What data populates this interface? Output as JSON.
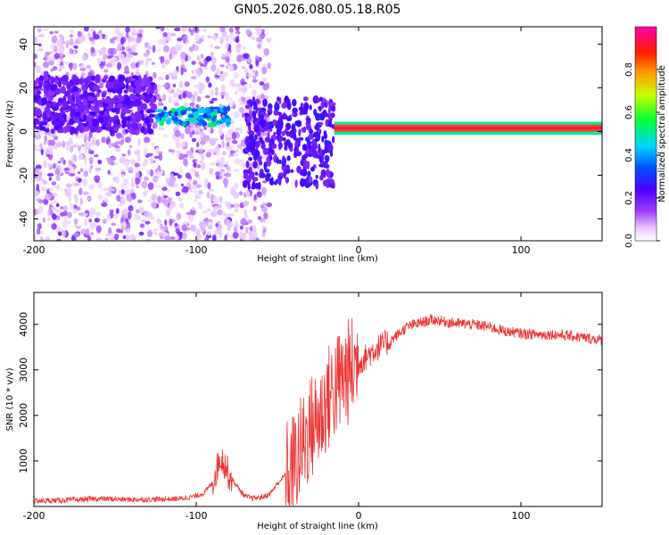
{
  "figure_title": "GN05.2026.080.05.18.R05",
  "chart_data": [
    {
      "type": "heatmap",
      "title": "GN05.2026.080.05.18.R05",
      "xlabel": "Height of straight line (km)",
      "ylabel": "Frequency (Hz)",
      "xlim": [
        -200,
        150
      ],
      "ylim": [
        -50,
        48
      ],
      "x_ticks": [
        -200,
        -100,
        0,
        100
      ],
      "y_ticks": [
        -40,
        -20,
        0,
        20,
        40
      ],
      "colorbar": {
        "label": "Normalized spectral amplitude",
        "range": [
          0.0,
          1.0
        ],
        "ticks": [
          0.0,
          0.2,
          0.4,
          0.6,
          0.8
        ]
      },
      "features": [
        {
          "name": "scattered noise speckle",
          "x_range": [
            -200,
            -60
          ],
          "freq_range": [
            -50,
            48
          ],
          "amplitude": 0.1
        },
        {
          "name": "low-frequency band",
          "x_range": [
            -200,
            -140
          ],
          "freq_range": [
            0,
            25
          ],
          "amplitude": 0.15
        },
        {
          "name": "strong narrowband line",
          "x_range": [
            -15,
            150
          ],
          "freq_hz": 1.5,
          "amplitude": 0.95
        },
        {
          "name": "bright blobs",
          "x_range": [
            -125,
            -80
          ],
          "freq_hz": 7,
          "amplitude": 0.45
        }
      ]
    },
    {
      "type": "line",
      "xlabel": "Height of straight line (km)",
      "ylabel": "SNR (10 * v/v)",
      "xlim": [
        -200,
        150
      ],
      "ylim": [
        0,
        4700
      ],
      "x_ticks": [
        -200,
        -100,
        0,
        100
      ],
      "y_ticks": [
        1000,
        2000,
        3000,
        4000
      ],
      "series": [
        {
          "name": "SNR",
          "color": "#ee3333",
          "x": [
            -200,
            -180,
            -160,
            -140,
            -120,
            -110,
            -100,
            -95,
            -90,
            -85,
            -82,
            -80,
            -75,
            -70,
            -65,
            -60,
            -55,
            -50,
            -45,
            -40,
            -35,
            -30,
            -25,
            -22,
            -20,
            -15,
            -10,
            -5,
            0,
            5,
            10,
            15,
            20,
            25,
            30,
            35,
            40,
            45,
            50,
            60,
            70,
            80,
            90,
            100,
            110,
            120,
            130,
            140,
            150
          ],
          "values": [
            120,
            140,
            170,
            150,
            160,
            170,
            230,
            300,
            520,
            1100,
            900,
            700,
            450,
            220,
            180,
            200,
            260,
            500,
            700,
            900,
            1300,
            1700,
            1900,
            2100,
            2300,
            2600,
            2800,
            3000,
            3150,
            3300,
            3450,
            3550,
            3650,
            3800,
            3950,
            4000,
            4050,
            4100,
            4080,
            4020,
            4000,
            3950,
            3850,
            3800,
            3780,
            3780,
            3750,
            3700,
            3650
          ]
        }
      ]
    }
  ]
}
